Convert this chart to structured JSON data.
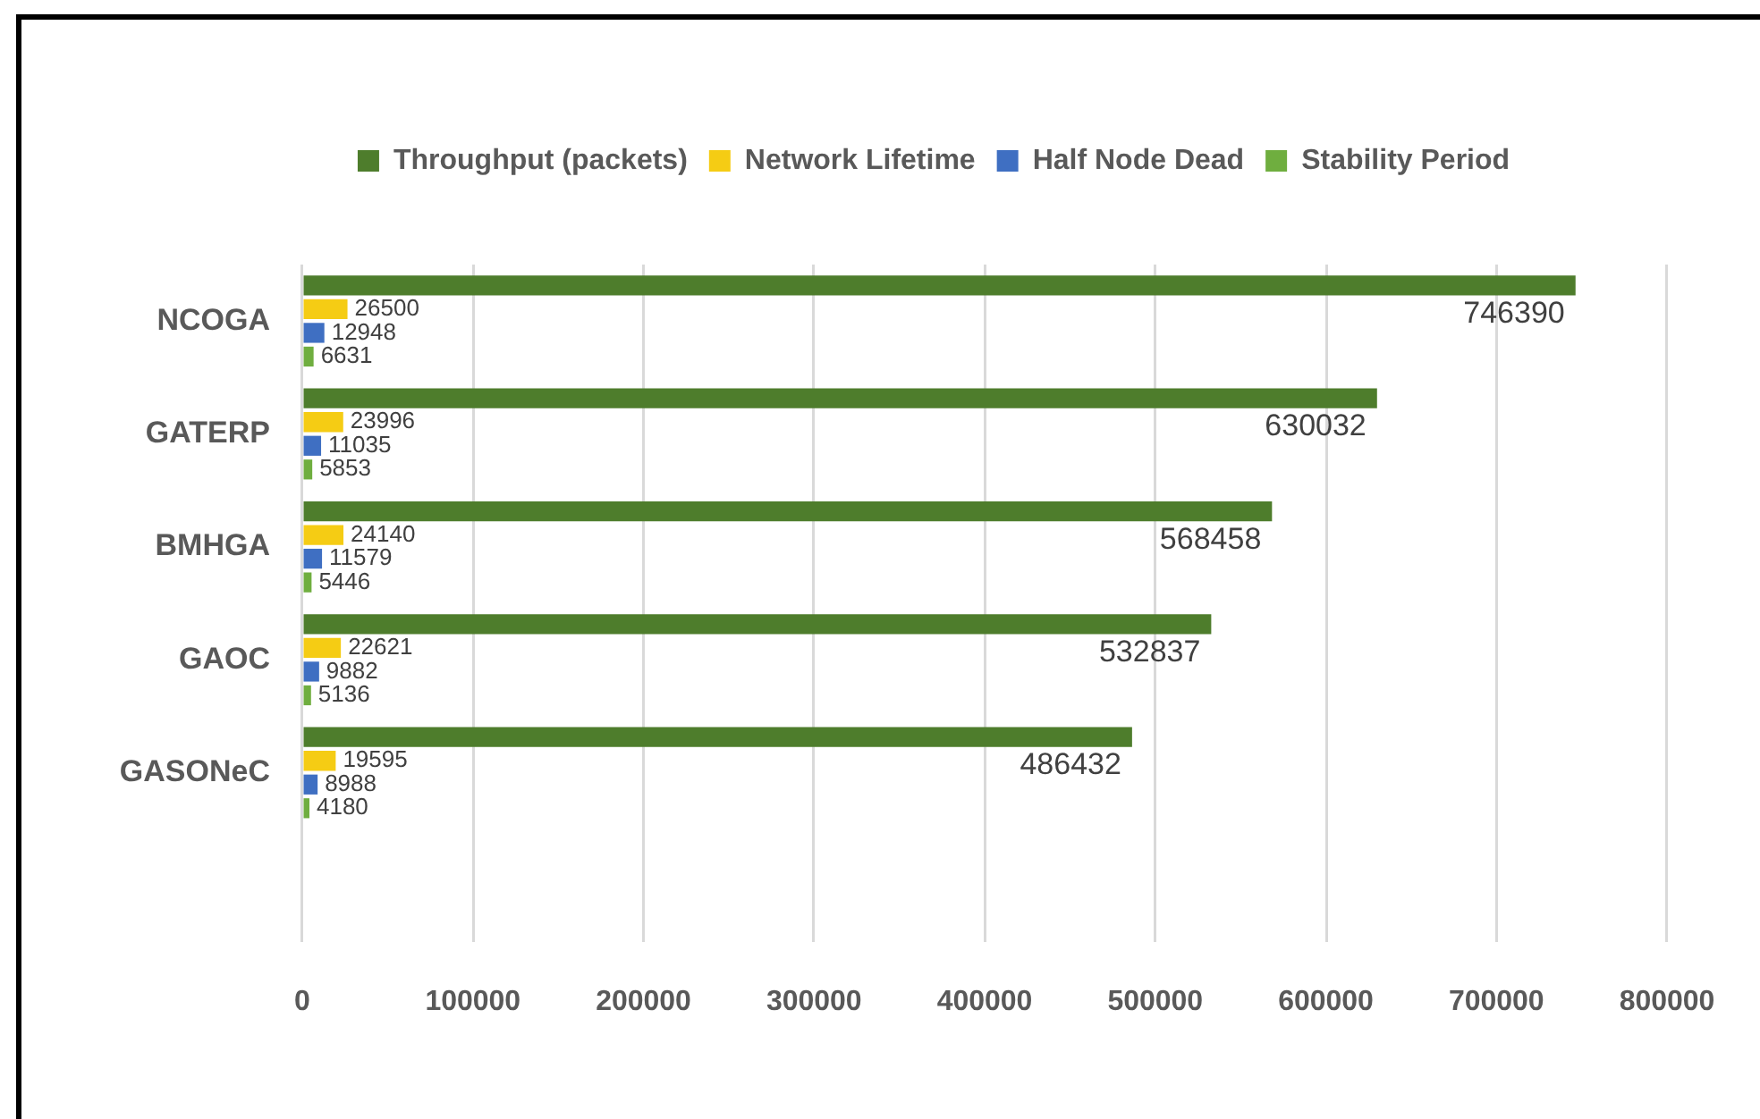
{
  "chart_data": {
    "type": "bar",
    "orientation": "horizontal",
    "categories": [
      "NCOGA",
      "GATERP",
      "BMHGA",
      "GAOC",
      "GASONeC",
      null
    ],
    "series": [
      {
        "name": "Throughput (packets)",
        "color": "#4e7d2c",
        "values": [
          746390,
          630032,
          568458,
          532837,
          486432,
          null
        ]
      },
      {
        "name": "Network Lifetime",
        "color": "#f5cc14",
        "values": [
          26500,
          23996,
          24140,
          22621,
          19595,
          null
        ]
      },
      {
        "name": "Half Node Dead",
        "color": "#3f6fc2",
        "values": [
          12948,
          11035,
          11579,
          9882,
          8988,
          null
        ]
      },
      {
        "name": "Stability Period",
        "color": "#6fae3f",
        "values": [
          6631,
          5853,
          5446,
          5136,
          4180,
          null
        ]
      }
    ],
    "xlim": [
      0,
      800000
    ],
    "xticks": [
      0,
      100000,
      200000,
      300000,
      400000,
      500000,
      600000,
      700000,
      800000
    ],
    "grid": "x",
    "legend": "top",
    "data_labels": true
  }
}
